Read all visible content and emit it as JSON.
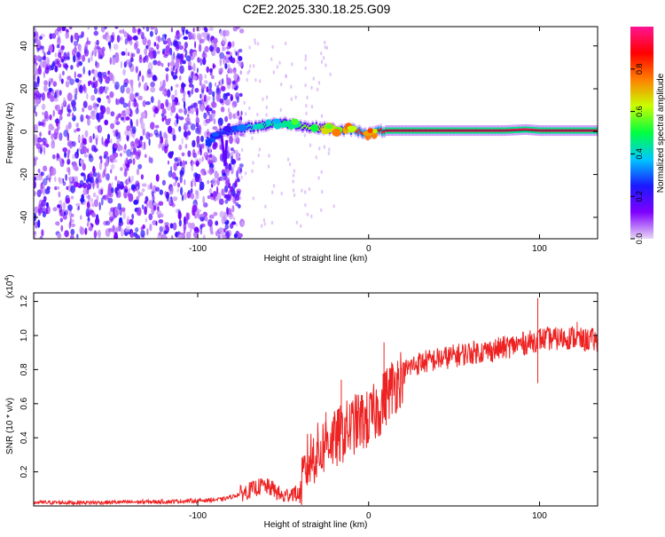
{
  "title": "C2E2.2025.330.18.25.G09",
  "chart_data": [
    {
      "type": "heatmap",
      "title": "C2E2.2025.330.18.25.G09",
      "xlabel": "Height of straight line (km)",
      "ylabel": "Frequency (Hz)",
      "xlim": [
        -196,
        134
      ],
      "ylim": [
        -50,
        49
      ],
      "xticks": [
        -100,
        0,
        100
      ],
      "yticks": [
        -40,
        -20,
        0,
        20,
        40
      ],
      "colorbar": {
        "label": "Normalized spectral amplitude",
        "range": [
          0,
          1
        ],
        "ticks": [
          0.0,
          0.2,
          0.4,
          0.6,
          0.8
        ],
        "colormap": [
          "#e8d8f4",
          "#7f00ff",
          "#1a1aff",
          "#00c8ff",
          "#00ff40",
          "#c8ff00",
          "#ff8000",
          "#ff0000",
          "#ff1493"
        ]
      },
      "noise_region_km": [
        -196,
        -80
      ],
      "ridge": {
        "x": [
          -95,
          -90,
          -85,
          -80,
          -75,
          -70,
          -65,
          -60,
          -55,
          -50,
          -45,
          -40,
          -35,
          -30,
          -25,
          -20,
          -15,
          -10,
          -5,
          0,
          5,
          10,
          20,
          40,
          60,
          80,
          92,
          100,
          120,
          134
        ],
        "y": [
          -5,
          -2,
          0,
          1,
          1,
          2,
          2.5,
          3,
          4,
          4,
          3.5,
          3,
          2,
          2,
          1.5,
          1,
          0.5,
          1,
          0,
          -1,
          0,
          0.5,
          0.5,
          0.5,
          0.5,
          0.5,
          1,
          0.5,
          0.5,
          0.5
        ],
        "amplitude": [
          0.35,
          0.3,
          0.28,
          0.3,
          0.35,
          0.4,
          0.45,
          0.45,
          0.5,
          0.5,
          0.55,
          0.55,
          0.6,
          0.65,
          0.7,
          0.75,
          0.8,
          0.8,
          0.85,
          0.85,
          0.85,
          0.95,
          0.95,
          0.95,
          0.95,
          0.95,
          0.95,
          0.95,
          0.95,
          0.95
        ]
      }
    },
    {
      "type": "line",
      "title": "",
      "xlabel": "Height of straight line (km)",
      "ylabel": "SNR (10 * v/v)",
      "scale_label": "(x10",
      "scale_exp": "4",
      "scale_close": ")",
      "xlim": [
        -196,
        134
      ],
      "ylim": [
        0,
        1.25
      ],
      "xticks": [
        -100,
        0,
        100
      ],
      "yticks": [
        0.2,
        0.4,
        0.6,
        0.8,
        1.0,
        1.2
      ],
      "color": "#ee2222",
      "x": [
        -196,
        -160,
        -120,
        -100,
        -85,
        -78,
        -70,
        -62,
        -56,
        -50,
        -45,
        -40,
        -36,
        -32,
        -28,
        -24,
        -20,
        -16,
        -12,
        -8,
        -4,
        0,
        4,
        8,
        12,
        16,
        20,
        25,
        30,
        40,
        50,
        60,
        70,
        80,
        88,
        94,
        100,
        110,
        120,
        126,
        130,
        134
      ],
      "y": [
        0.02,
        0.02,
        0.025,
        0.03,
        0.04,
        0.06,
        0.09,
        0.12,
        0.1,
        0.05,
        0.08,
        0.06,
        0.25,
        0.3,
        0.32,
        0.4,
        0.38,
        0.42,
        0.45,
        0.48,
        0.5,
        0.5,
        0.55,
        0.6,
        0.68,
        0.72,
        0.78,
        0.82,
        0.84,
        0.86,
        0.88,
        0.9,
        0.91,
        0.93,
        0.95,
        0.96,
        0.98,
        0.98,
        0.99,
        0.97,
        0.98,
        0.96
      ],
      "peaks": [
        {
          "x": -25,
          "y": 0.55
        },
        {
          "x": -16,
          "y": 0.74
        },
        {
          "x": 9,
          "y": 0.96
        },
        {
          "x": 99,
          "y": 1.22
        },
        {
          "x": 122,
          "y": 1.08
        },
        {
          "x": 99,
          "y": 0.72
        }
      ]
    }
  ]
}
